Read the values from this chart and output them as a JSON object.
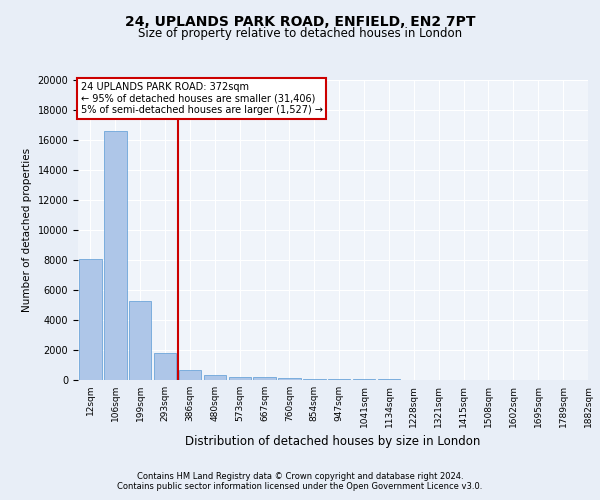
{
  "title_line1": "24, UPLANDS PARK ROAD, ENFIELD, EN2 7PT",
  "title_line2": "Size of property relative to detached houses in London",
  "xlabel": "Distribution of detached houses by size in London",
  "ylabel": "Number of detached properties",
  "bar_values": [
    8100,
    16600,
    5300,
    1800,
    650,
    350,
    200,
    175,
    150,
    100,
    75,
    50,
    50,
    30,
    25,
    20,
    15,
    10,
    10,
    5
  ],
  "bar_labels": [
    "12sqm",
    "106sqm",
    "199sqm",
    "293sqm",
    "386sqm",
    "480sqm",
    "573sqm",
    "667sqm",
    "760sqm",
    "854sqm",
    "947sqm",
    "1041sqm",
    "1134sqm",
    "1228sqm",
    "1321sqm",
    "1415sqm",
    "1508sqm",
    "1602sqm",
    "1695sqm",
    "1789sqm"
  ],
  "extra_tick_label": "1882sqm",
  "bar_color": "#aec6e8",
  "bar_edge_color": "#5b9bd5",
  "vline_x": 3.5,
  "vline_color": "#cc0000",
  "annotation_line1": "24 UPLANDS PARK ROAD: 372sqm",
  "annotation_line2": "← 95% of detached houses are smaller (31,406)",
  "annotation_line3": "5% of semi-detached houses are larger (1,527) →",
  "annotation_box_color": "#cc0000",
  "ylim_max": 20000,
  "ytick_step": 2000,
  "bg_color": "#e8eef7",
  "plot_bg_color": "#f0f4fa",
  "footer_line1": "Contains HM Land Registry data © Crown copyright and database right 2024.",
  "footer_line2": "Contains public sector information licensed under the Open Government Licence v3.0."
}
